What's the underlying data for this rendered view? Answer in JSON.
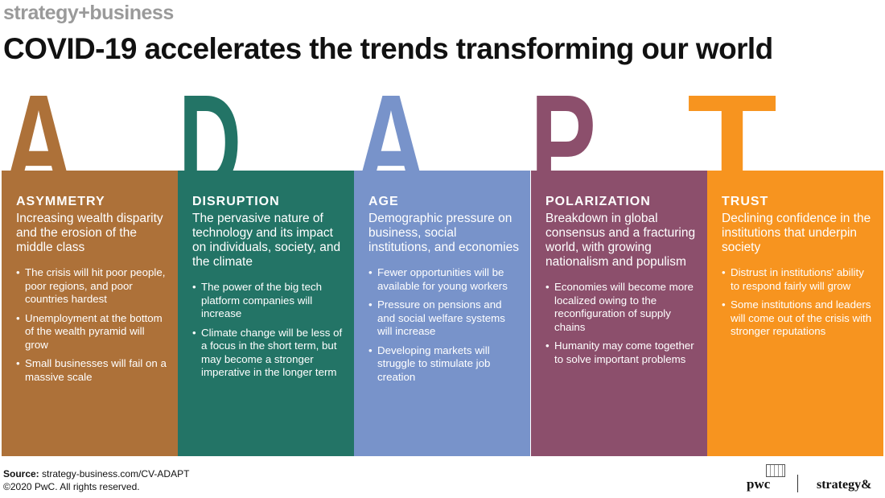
{
  "header": {
    "brand": "strategy+business",
    "title": "COVID-19 accelerates the trends transforming our world"
  },
  "columns": [
    {
      "letter": "A",
      "color": "#ad7139",
      "heading": "ASYMMETRY",
      "summary": "Increasing wealth disparity and the erosion of the middle class",
      "bullets": [
        "The crisis will hit poor people, poor regions, and poor countries hardest",
        "Unemployment at the bottom of the wealth pyramid will grow",
        "Small businesses will fail on a massive scale"
      ]
    },
    {
      "letter": "D",
      "color": "#237466",
      "heading": "DISRUPTION",
      "summary": "The pervasive nature of technology and its impact on individuals, society, and the climate",
      "bullets": [
        "The power of the big tech platform companies will increase",
        "Climate change will be less of a focus in the short term, but may become a stronger imperative in the longer term"
      ]
    },
    {
      "letter": "A",
      "color": "#7893ca",
      "heading": "AGE",
      "summary": "Demographic pressure on business, social institutions, and economies",
      "bullets": [
        "Fewer opportunities will be available for young workers",
        "Pressure on pensions and and social welfare systems will increase",
        "Developing markets will struggle to stimulate job creation"
      ]
    },
    {
      "letter": "P",
      "color": "#8c4f6c",
      "heading": "POLARIZATION",
      "summary": "Breakdown in global consensus and a fracturing world, with growing nationalism and populism",
      "bullets": [
        "Economies will become more localized owing to the reconfiguration of supply chains",
        "Humanity may come together to solve important problems"
      ]
    },
    {
      "letter": "T",
      "color": "#f7941f",
      "heading": "TRUST",
      "summary": "Declining confidence in the institutions that underpin society",
      "bullets": [
        "Distrust in institutions' ability to respond fairly will grow",
        "Some institutions and leaders will come out of the crisis with stronger reputations"
      ]
    }
  ],
  "footer": {
    "source_label": "Source:",
    "source_text": "strategy-business.com/CV-ADAPT",
    "copyright": "©2020 PwC. All rights reserved.",
    "logo_pwc": "pwc",
    "logo_strategy": "strategy&"
  }
}
